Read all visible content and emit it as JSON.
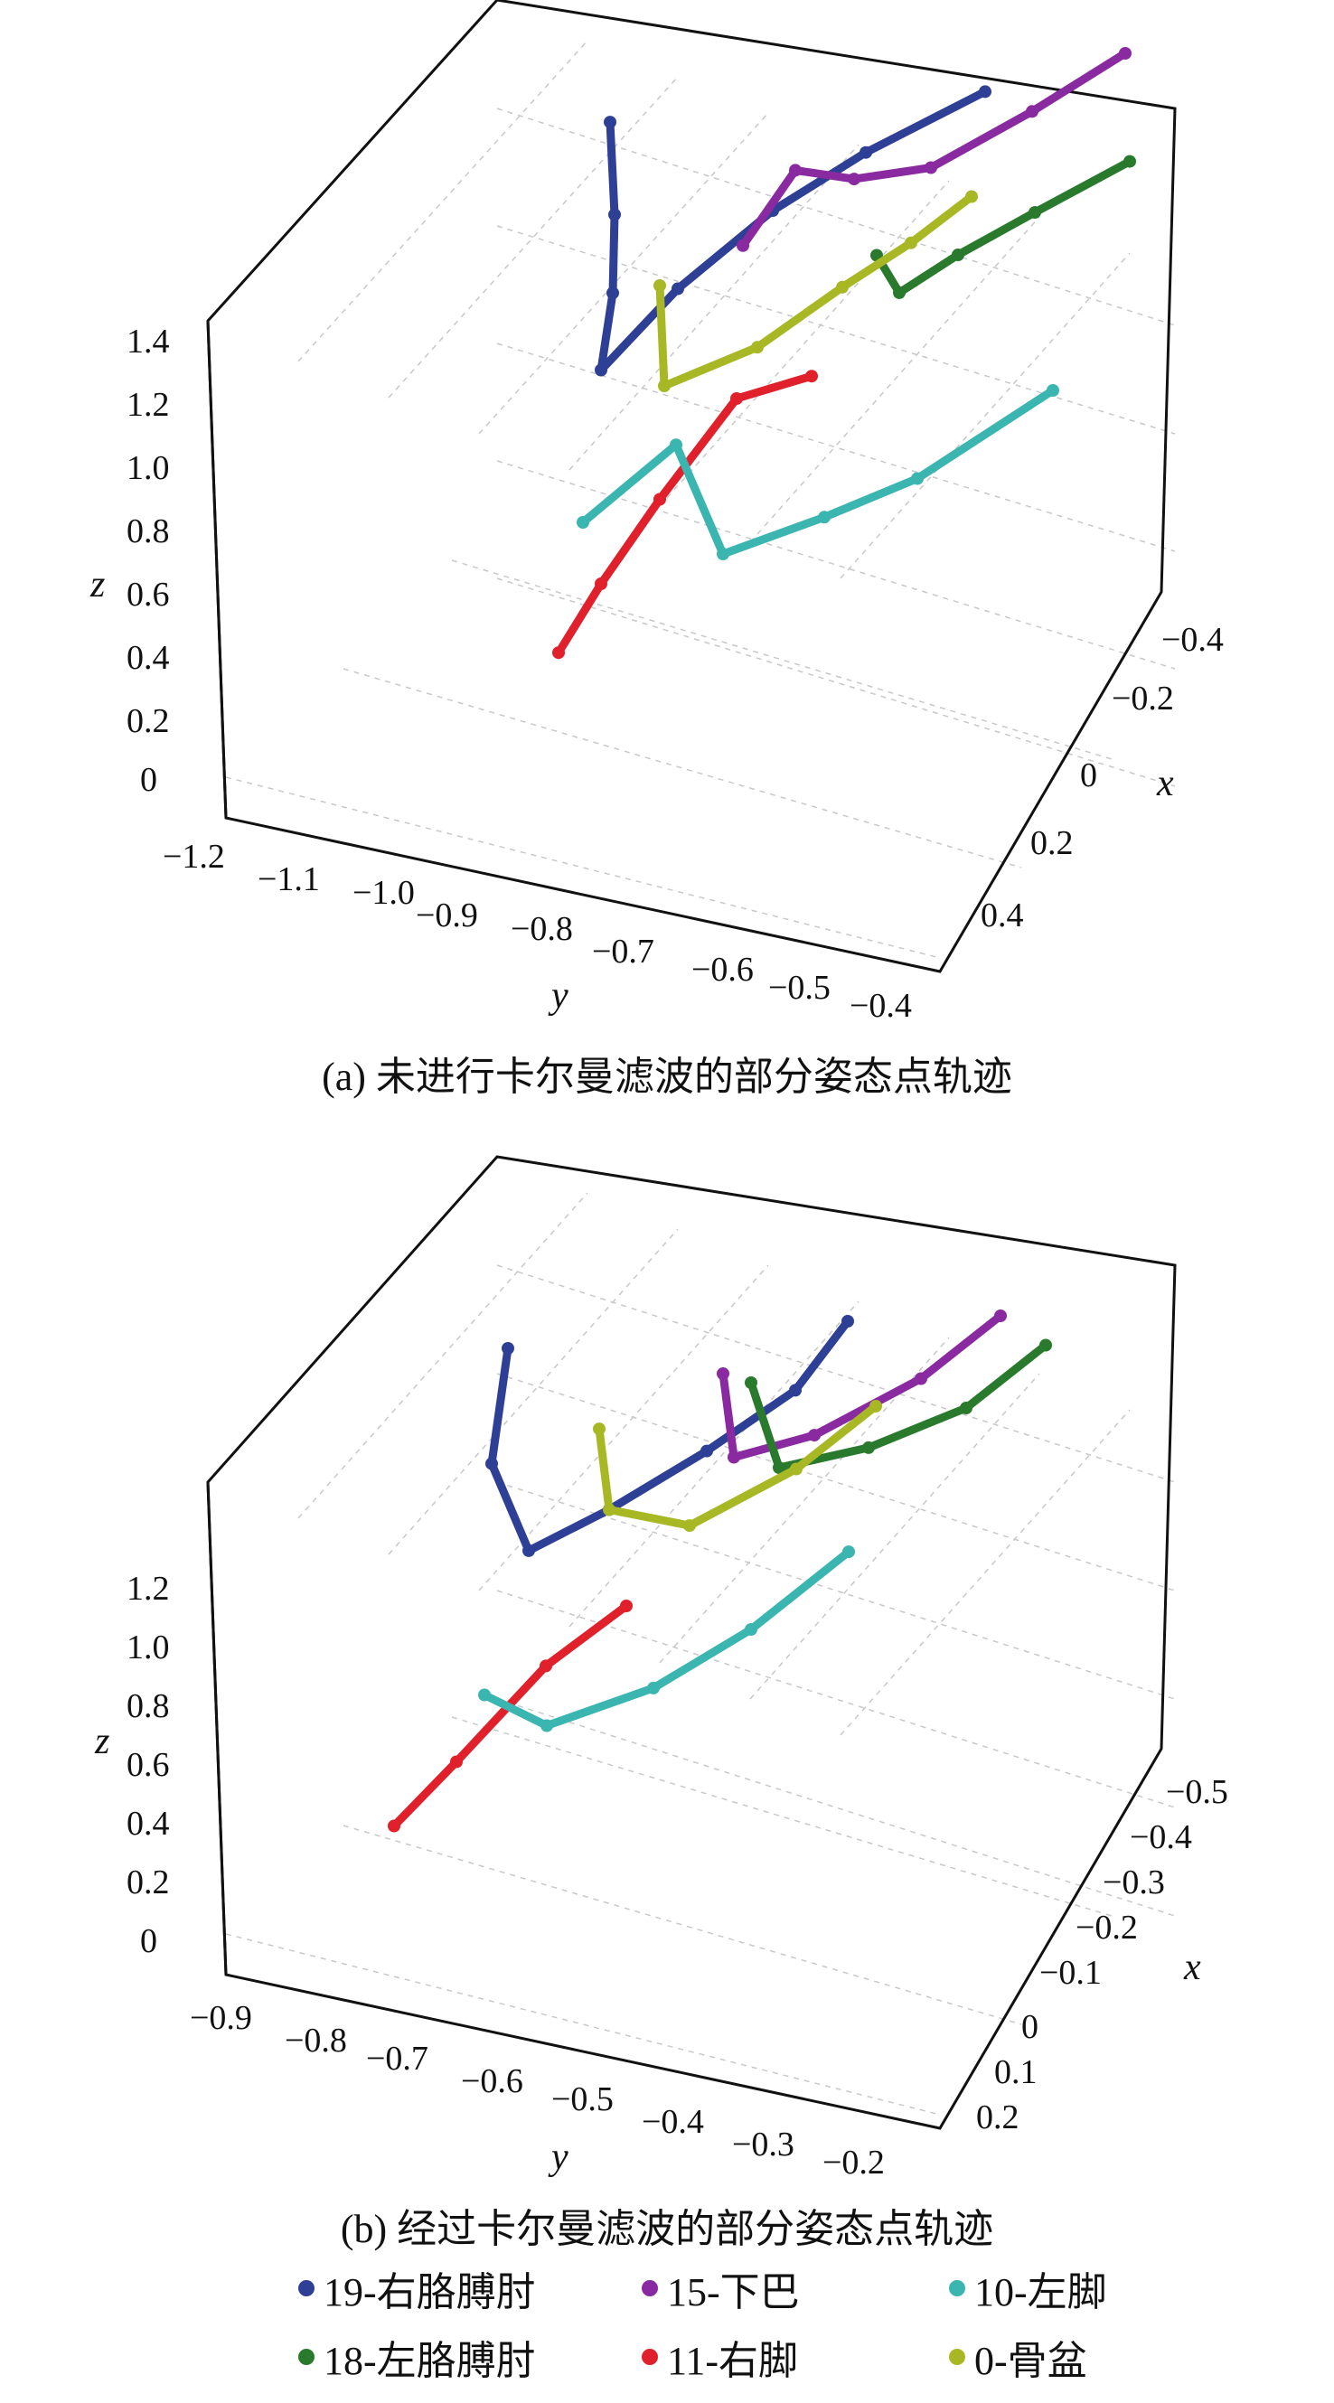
{
  "captions": {
    "a": "(a) 未进行卡尔曼滤波的部分姿态点轨迹",
    "b": "(b) 经过卡尔曼滤波的部分姿态点轨迹"
  },
  "legend": [
    {
      "label": "19-右胳膊肘",
      "color": "#2e3f96"
    },
    {
      "label": "15-下巴",
      "color": "#8a2aa0"
    },
    {
      "label": "10-左脚",
      "color": "#3bb5b0"
    },
    {
      "label": "18-左胳膊肘",
      "color": "#2a7a2e"
    },
    {
      "label": "11-右脚",
      "color": "#e0202a"
    },
    {
      "label": "0-骨盆",
      "color": "#a8b825"
    }
  ],
  "chart_data": [
    {
      "type": "scatter3d",
      "xlabel": "x",
      "ylabel": "y",
      "zlabel": "z",
      "y_ticks": [
        "−1.2",
        "−1.1",
        "−1.0",
        "−0.9",
        "−0.8",
        "−0.7",
        "−0.6",
        "−0.5",
        "−0.4"
      ],
      "x_ticks": [
        "−0.4",
        "−0.2",
        "0",
        "0.2",
        "0.4"
      ],
      "z_ticks": [
        "0",
        "0.2",
        "0.4",
        "0.6",
        "0.8",
        "1.0",
        "1.2",
        "1.4"
      ],
      "grid": true,
      "series": [
        {
          "key": "19-右胳膊肘",
          "color": "#2e3f96",
          "points": [
            [
              -0.1,
              -1.05,
              1.28
            ],
            [
              0.0,
              -1.0,
              1.15
            ],
            [
              0.05,
              -0.98,
              1.0
            ],
            [
              0.15,
              -0.95,
              0.9
            ],
            [
              0.05,
              -0.9,
              1.05
            ],
            [
              -0.1,
              -0.85,
              1.15
            ],
            [
              -0.2,
              -0.78,
              1.25
            ],
            [
              -0.35,
              -0.7,
              1.32
            ]
          ]
        },
        {
          "key": "15-下巴",
          "color": "#8a2aa0",
          "points": [
            [
              0.05,
              -0.82,
              1.2
            ],
            [
              -0.05,
              -0.8,
              1.32
            ],
            [
              -0.1,
              -0.75,
              1.28
            ],
            [
              -0.2,
              -0.7,
              1.25
            ],
            [
              -0.3,
              -0.62,
              1.35
            ],
            [
              -0.4,
              -0.55,
              1.45
            ]
          ]
        },
        {
          "key": "18-左胳膊肘",
          "color": "#2a7a2e",
          "points": [
            [
              -0.05,
              -0.7,
              1.15
            ],
            [
              0.0,
              -0.65,
              1.12
            ],
            [
              -0.05,
              -0.6,
              1.2
            ],
            [
              -0.15,
              -0.55,
              1.25
            ],
            [
              -0.3,
              -0.5,
              1.28
            ]
          ]
        },
        {
          "key": "0-骨盆",
          "color": "#a8b825",
          "points": [
            [
              0.1,
              -0.9,
              1.1
            ],
            [
              0.2,
              -0.85,
              0.95
            ],
            [
              0.1,
              -0.78,
              1.0
            ],
            [
              0.0,
              -0.72,
              1.1
            ],
            [
              -0.1,
              -0.68,
              1.15
            ],
            [
              -0.2,
              -0.65,
              1.2
            ]
          ]
        },
        {
          "key": "11-右脚",
          "color": "#e0202a",
          "points": [
            [
              0.2,
              -0.98,
              0.2
            ],
            [
              0.15,
              -0.95,
              0.35
            ],
            [
              0.1,
              -0.9,
              0.55
            ],
            [
              0.0,
              -0.85,
              0.75
            ],
            [
              -0.05,
              -0.78,
              0.8
            ]
          ]
        },
        {
          "key": "10-左脚",
          "color": "#3bb5b0",
          "points": [
            [
              0.2,
              -0.95,
              0.55
            ],
            [
              0.1,
              -0.88,
              0.7
            ],
            [
              0.15,
              -0.8,
              0.5
            ],
            [
              0.05,
              -0.72,
              0.55
            ],
            [
              -0.05,
              -0.65,
              0.6
            ],
            [
              -0.2,
              -0.55,
              0.75
            ]
          ]
        }
      ]
    },
    {
      "type": "scatter3d",
      "xlabel": "x",
      "ylabel": "y",
      "zlabel": "z",
      "y_ticks": [
        "−0.9",
        "−0.8",
        "−0.7",
        "−0.6",
        "−0.5",
        "−0.4",
        "−0.3",
        "−0.2"
      ],
      "x_ticks": [
        "−0.5",
        "−0.4",
        "−0.3",
        "−0.2",
        "−0.1",
        "0",
        "0.1",
        "0.2"
      ],
      "z_ticks": [
        "0",
        "0.2",
        "0.4",
        "0.6",
        "0.8",
        "1.0",
        "1.2"
      ],
      "grid": true,
      "series": [
        {
          "key": "19-右胳膊肘",
          "color": "#2e3f96",
          "points": [
            [
              -0.1,
              -0.8,
              1.25
            ],
            [
              0.0,
              -0.78,
              1.05
            ],
            [
              0.05,
              -0.72,
              0.9
            ],
            [
              0.0,
              -0.65,
              1.0
            ],
            [
              -0.1,
              -0.58,
              1.1
            ],
            [
              -0.2,
              -0.52,
              1.2
            ],
            [
              -0.3,
              -0.5,
              1.3
            ]
          ]
        },
        {
          "key": "15-下巴",
          "color": "#8a2aa0",
          "points": [
            [
              -0.2,
              -0.6,
              1.2
            ],
            [
              -0.1,
              -0.55,
              1.1
            ],
            [
              -0.15,
              -0.48,
              1.15
            ],
            [
              -0.25,
              -0.4,
              1.25
            ],
            [
              -0.35,
              -0.35,
              1.35
            ]
          ]
        },
        {
          "key": "18-左胳膊肘",
          "color": "#2a7a2e",
          "points": [
            [
              -0.15,
              -0.55,
              1.25
            ],
            [
              -0.1,
              -0.5,
              1.1
            ],
            [
              -0.15,
              -0.42,
              1.15
            ],
            [
              -0.25,
              -0.35,
              1.2
            ],
            [
              -0.35,
              -0.3,
              1.3
            ]
          ]
        },
        {
          "key": "0-骨盆",
          "color": "#a8b825",
          "points": [
            [
              -0.05,
              -0.68,
              1.15
            ],
            [
              0.0,
              -0.65,
              1.0
            ],
            [
              -0.05,
              -0.58,
              0.95
            ],
            [
              -0.15,
              -0.5,
              1.05
            ],
            [
              -0.25,
              -0.45,
              1.15
            ]
          ]
        },
        {
          "key": "11-右脚",
          "color": "#e0202a",
          "points": [
            [
              0.1,
              -0.85,
              0.15
            ],
            [
              0.05,
              -0.8,
              0.3
            ],
            [
              0.0,
              -0.72,
              0.55
            ],
            [
              -0.05,
              -0.65,
              0.7
            ]
          ]
        },
        {
          "key": "10-左脚",
          "color": "#3bb5b0",
          "points": [
            [
              0.1,
              -0.75,
              0.55
            ],
            [
              0.05,
              -0.7,
              0.45
            ],
            [
              -0.05,
              -0.62,
              0.5
            ],
            [
              -0.15,
              -0.55,
              0.6
            ],
            [
              -0.25,
              -0.48,
              0.75
            ]
          ]
        }
      ]
    }
  ]
}
